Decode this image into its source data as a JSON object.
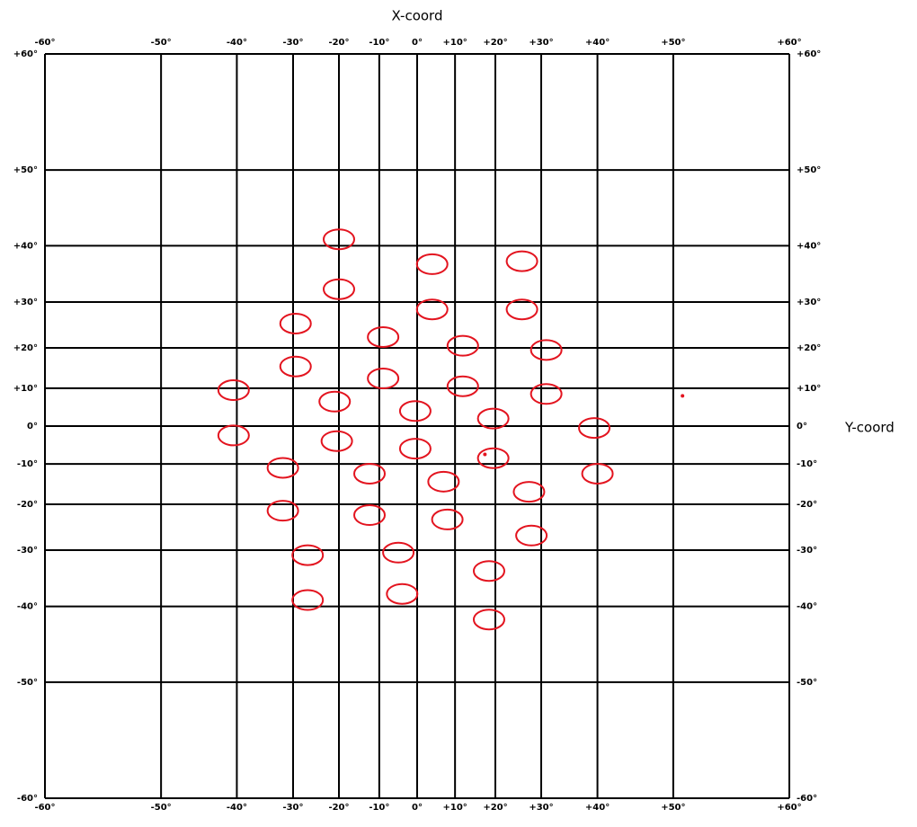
{
  "chart_data": {
    "type": "scatter",
    "xlabel": "X-coord",
    "ylabel": "Y-coord",
    "xscale": "tan",
    "yscale": "tan",
    "grid": true,
    "xlim": [
      -60,
      60
    ],
    "ylim": [
      -60,
      60
    ],
    "xticks": [
      {
        "value": -60,
        "label": "-60°"
      },
      {
        "value": -50,
        "label": "-50°"
      },
      {
        "value": -40,
        "label": "-40°"
      },
      {
        "value": -30,
        "label": "-30°"
      },
      {
        "value": -20,
        "label": "-20°"
      },
      {
        "value": -10,
        "label": "-10°"
      },
      {
        "value": 0,
        "label": "0°"
      },
      {
        "value": 10,
        "label": "+10°"
      },
      {
        "value": 20,
        "label": "+20°"
      },
      {
        "value": 30,
        "label": "+30°"
      },
      {
        "value": 40,
        "label": "+40°"
      },
      {
        "value": 50,
        "label": "+50°"
      },
      {
        "value": 60,
        "label": "+60°"
      }
    ],
    "yticks": [
      {
        "value": -60,
        "label": "-60°"
      },
      {
        "value": -50,
        "label": "-50°"
      },
      {
        "value": -40,
        "label": "-40°"
      },
      {
        "value": -30,
        "label": "-30°"
      },
      {
        "value": -20,
        "label": "-20°"
      },
      {
        "value": -10,
        "label": "-10°"
      },
      {
        "value": 0,
        "label": "0°"
      },
      {
        "value": 10,
        "label": "+10°"
      },
      {
        "value": 20,
        "label": "+20°"
      },
      {
        "value": 30,
        "label": "+30°"
      },
      {
        "value": 40,
        "label": "+40°"
      },
      {
        "value": 50,
        "label": "+50°"
      },
      {
        "value": 60,
        "label": "+60°"
      }
    ],
    "series": [
      {
        "color": "#e3141f",
        "marker": "ring",
        "x": [
          -20,
          4,
          26,
          -20,
          4,
          26,
          -29.5,
          -9,
          12,
          31,
          -29.5,
          -9,
          12,
          -40.5,
          31,
          -21,
          -0.5,
          19.5,
          39.5,
          -40.5,
          -20.5,
          -0.5,
          19.5,
          -32,
          40,
          -12.5,
          7,
          27.5,
          -32,
          -12.5,
          8,
          28,
          -27,
          -5,
          18.5,
          -27,
          -4,
          18.5
        ],
        "values": [
          41,
          37,
          37.5,
          32.5,
          28.5,
          28.5,
          25.5,
          22.5,
          20.5,
          19.5,
          15.5,
          12.5,
          10.5,
          9.5,
          8.5,
          6.5,
          4,
          2,
          -0.5,
          -2.5,
          -4,
          -6,
          -8.5,
          -11,
          -12.5,
          -12.5,
          -14.5,
          -17,
          -21.5,
          -22.5,
          -23.5,
          -27,
          -31,
          -30.5,
          -34,
          -39,
          -38,
          -42
        ]
      },
      {
        "color": "#e3141f",
        "marker": "dot",
        "x": [
          51,
          17.5
        ],
        "values": [
          8,
          -7.5
        ]
      }
    ]
  }
}
